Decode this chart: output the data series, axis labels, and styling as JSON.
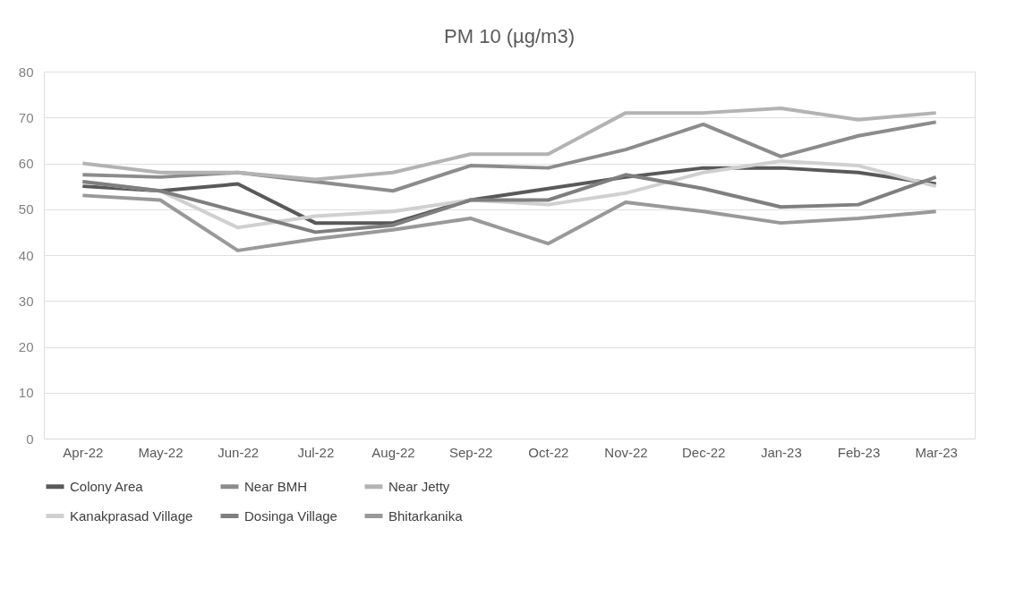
{
  "chart_data": {
    "type": "line",
    "title": "PM 10 (µg/m3)",
    "categories": [
      "Apr-22",
      "May-22",
      "Jun-22",
      "Jul-22",
      "Aug-22",
      "Sep-22",
      "Oct-22",
      "Nov-22",
      "Dec-22",
      "Jan-23",
      "Feb-23",
      "Mar-23"
    ],
    "series": [
      {
        "name": "Colony Area",
        "color": "#595959",
        "values": [
          55,
          54,
          55.5,
          47,
          47,
          52,
          54.5,
          57,
          59,
          59,
          58,
          55.5
        ]
      },
      {
        "name": "Near BMH",
        "color": "#8c8c8c",
        "values": [
          57.5,
          57,
          58,
          56,
          54,
          59.5,
          59,
          63,
          68.5,
          61.5,
          66,
          69
        ]
      },
      {
        "name": "Near Jetty",
        "color": "#b3b3b3",
        "values": [
          60,
          58,
          58,
          56.5,
          58,
          62,
          62,
          71,
          71,
          72,
          69.5,
          71
        ]
      },
      {
        "name": "Kanakprasad Village",
        "color": "#d0d0d0",
        "values": [
          56,
          54,
          46,
          48.5,
          49.5,
          52,
          51,
          53.5,
          58,
          60.5,
          59.5,
          55
        ]
      },
      {
        "name": "Dosinga Village",
        "color": "#7f7f7f",
        "values": [
          56,
          54,
          49.5,
          45,
          46.5,
          52,
          52,
          57.5,
          54.5,
          50.5,
          51,
          57
        ]
      },
      {
        "name": "Bhitarkanika",
        "color": "#999999",
        "values": [
          53,
          52,
          41,
          43.5,
          45.5,
          48,
          42.5,
          51.5,
          49.5,
          47,
          48,
          49.5
        ]
      }
    ],
    "ylim": [
      0,
      80
    ],
    "yticks": [
      0,
      10,
      20,
      30,
      40,
      50,
      60,
      70,
      80
    ],
    "grid": "y",
    "legend": "bottom",
    "marker": "none",
    "line_style": "solid"
  }
}
